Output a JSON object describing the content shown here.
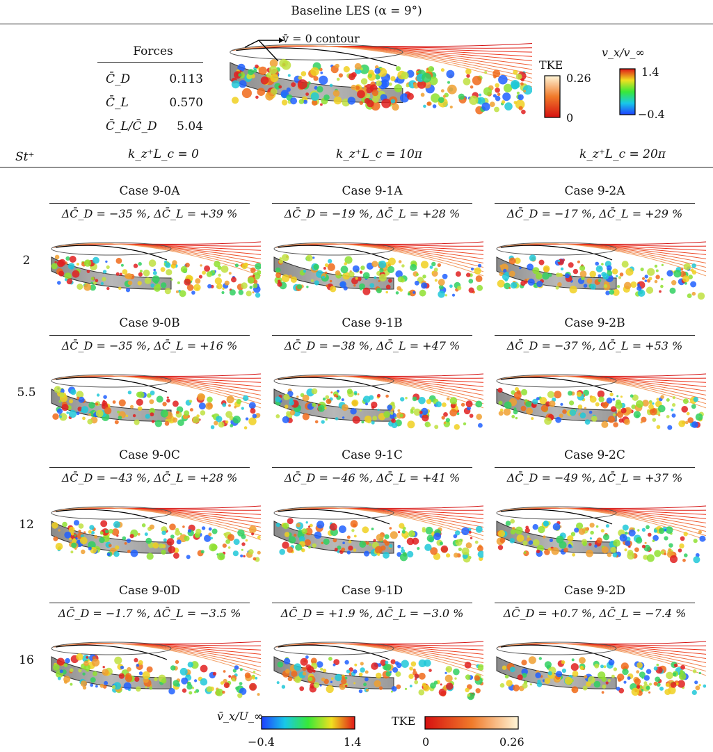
{
  "title": "Baseline LES (α = 9°)",
  "baseline": {
    "forces_heading": "Forces",
    "forces": [
      {
        "symbol": "C̄_D",
        "value": "0.113"
      },
      {
        "symbol": "C̄_L",
        "value": "0.570"
      },
      {
        "symbol": "C̄_L/C̄_D",
        "value": "5.04"
      }
    ],
    "annotation": "v̄ = 0 contour",
    "colorbar_tke": {
      "label": "TKE",
      "max": "0.26",
      "min": "0"
    },
    "colorbar_vx": {
      "label": "v_x/v_∞",
      "max": "1.4",
      "min": "−0.4"
    }
  },
  "axis": {
    "row_header": "St⁺",
    "columns": [
      "k_z⁺L_c = 0",
      "k_z⁺L_c = 10π",
      "k_z⁺L_c = 20π"
    ]
  },
  "rows": [
    {
      "st": "2",
      "cases": [
        {
          "name": "Case 9-0A",
          "delta": "ΔC̄_D = −35 %, ΔC̄_L = +39 %"
        },
        {
          "name": "Case 9-1A",
          "delta": "ΔC̄_D = −19 %, ΔC̄_L = +28 %"
        },
        {
          "name": "Case 9-2A",
          "delta": "ΔC̄_D = −17 %, ΔC̄_L = +29 %"
        }
      ]
    },
    {
      "st": "5.5",
      "cases": [
        {
          "name": "Case 9-0B",
          "delta": "ΔC̄_D = −35 %, ΔC̄_L = +16 %"
        },
        {
          "name": "Case 9-1B",
          "delta": "ΔC̄_D = −38 %, ΔC̄_L = +47 %"
        },
        {
          "name": "Case 9-2B",
          "delta": "ΔC̄_D = −37 %, ΔC̄_L = +53 %"
        }
      ]
    },
    {
      "st": "12",
      "cases": [
        {
          "name": "Case 9-0C",
          "delta": "ΔC̄_D = −43 %, ΔC̄_L = +28 %"
        },
        {
          "name": "Case 9-1C",
          "delta": "ΔC̄_D = −46 %, ΔC̄_L = +41 %"
        },
        {
          "name": "Case 9-2C",
          "delta": "ΔC̄_D = −49 %, ΔC̄_L = +37 %"
        }
      ]
    },
    {
      "st": "16",
      "cases": [
        {
          "name": "Case 9-0D",
          "delta": "ΔC̄_D = −1.7 %, ΔC̄_L = −3.5 %"
        },
        {
          "name": "Case 9-1D",
          "delta": "ΔC̄_D = +1.9 %, ΔC̄_L = −3.0 %"
        },
        {
          "name": "Case 9-2D",
          "delta": "ΔC̄_D = +0.7 %, ΔC̄_L = −7.4 %"
        }
      ]
    }
  ],
  "legend": {
    "vx": {
      "label": "v̄_x/U_∞",
      "min": "−0.4",
      "max": "1.4"
    },
    "tke": {
      "label": "TKE",
      "min": "0",
      "max": "0.26"
    }
  }
}
